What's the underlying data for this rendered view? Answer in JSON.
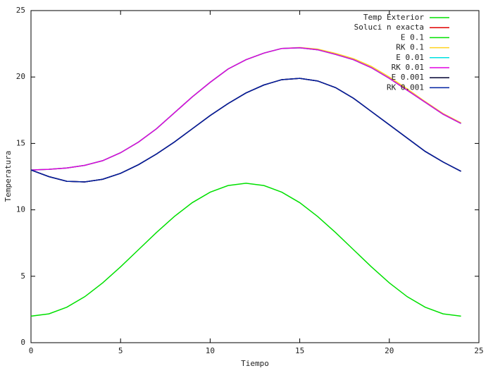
{
  "chart_data": {
    "type": "line",
    "xlabel": "Tiempo",
    "ylabel": "Temperatura",
    "x": [
      0,
      1,
      2,
      3,
      4,
      5,
      6,
      7,
      8,
      9,
      10,
      11,
      12,
      13,
      14,
      15,
      16,
      17,
      18,
      19,
      20,
      21,
      22,
      23,
      24
    ],
    "xlim": [
      0,
      25
    ],
    "xticks": [
      0,
      5,
      10,
      15,
      20,
      25
    ],
    "ylim": [
      0,
      25
    ],
    "yticks": [
      0,
      5,
      10,
      15,
      20,
      25
    ],
    "legend": "top-right",
    "series": [
      {
        "name": "Temp Exterior",
        "color": "#00e000",
        "values": [
          2,
          2.17,
          2.67,
          3.46,
          4.5,
          5.71,
          7,
          8.29,
          9.5,
          10.54,
          11.33,
          11.83,
          12,
          11.83,
          11.33,
          10.54,
          9.5,
          8.29,
          7,
          5.71,
          4.5,
          3.46,
          2.67,
          2.17,
          2
        ]
      },
      {
        "name": "Soluci n exacta",
        "color": "#e00000",
        "values": [
          13,
          12.5,
          12.15,
          12.1,
          12.3,
          12.75,
          13.4,
          14.2,
          15.1,
          16.1,
          17.1,
          18,
          18.8,
          19.4,
          19.8,
          19.9,
          19.7,
          19.2,
          18.4,
          17.4,
          16.4,
          15.4,
          14.4,
          13.6,
          12.9
        ]
      },
      {
        "name": "E 0.1",
        "color": "#00e000",
        "values": [
          13,
          13.05,
          13.15,
          13.35,
          13.7,
          14.3,
          15.1,
          16.1,
          17.3,
          18.5,
          19.6,
          20.6,
          21.3,
          21.8,
          22.15,
          22.2,
          22.05,
          21.7,
          21.3,
          20.7,
          19.9,
          19,
          18.1,
          17.2,
          16.5
        ]
      },
      {
        "name": "RK 0.1",
        "color": "#ffd21e",
        "values": [
          13,
          13.05,
          13.15,
          13.35,
          13.7,
          14.3,
          15.1,
          16.1,
          17.3,
          18.5,
          19.6,
          20.6,
          21.3,
          21.8,
          22.15,
          22.22,
          22.1,
          21.78,
          21.38,
          20.8,
          20,
          19.1,
          18.15,
          17.25,
          16.55
        ]
      },
      {
        "name": "E 0.01",
        "color": "#00e0e0",
        "values": [
          13,
          13.05,
          13.15,
          13.35,
          13.7,
          14.3,
          15.1,
          16.1,
          17.3,
          18.5,
          19.6,
          20.6,
          21.3,
          21.8,
          22.15,
          22.2,
          22.05,
          21.7,
          21.3,
          20.7,
          19.9,
          19,
          18.1,
          17.2,
          16.5
        ]
      },
      {
        "name": "RK 0.01",
        "color": "#e000e0",
        "values": [
          13,
          13.05,
          13.15,
          13.35,
          13.7,
          14.3,
          15.1,
          16.1,
          17.3,
          18.5,
          19.6,
          20.6,
          21.3,
          21.8,
          22.15,
          22.2,
          22.05,
          21.7,
          21.3,
          20.7,
          19.9,
          19,
          18.1,
          17.2,
          16.5
        ]
      },
      {
        "name": "E 0.001",
        "color": "#000030",
        "values": [
          13,
          12.5,
          12.15,
          12.1,
          12.3,
          12.75,
          13.4,
          14.2,
          15.1,
          16.1,
          17.1,
          18,
          18.8,
          19.4,
          19.8,
          19.9,
          19.7,
          19.2,
          18.4,
          17.4,
          16.4,
          15.4,
          14.4,
          13.6,
          12.9
        ]
      },
      {
        "name": "RK 0.001",
        "color": "#0020a0",
        "values": [
          13,
          12.5,
          12.15,
          12.1,
          12.3,
          12.75,
          13.4,
          14.2,
          15.1,
          16.1,
          17.1,
          18,
          18.8,
          19.4,
          19.8,
          19.9,
          19.7,
          19.2,
          18.4,
          17.4,
          16.4,
          15.4,
          14.4,
          13.6,
          12.9
        ]
      }
    ]
  }
}
